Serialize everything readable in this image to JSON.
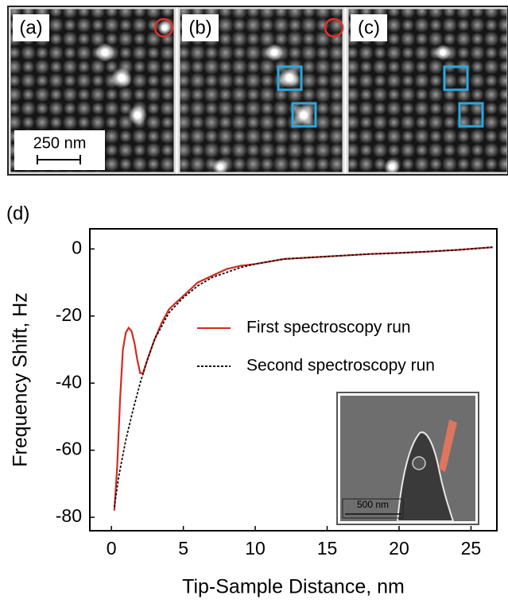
{
  "panels": [
    {
      "label": "(a)"
    },
    {
      "label": "(b)"
    },
    {
      "label": "(c)"
    }
  ],
  "scale_bar": "250 nm",
  "chart_data": {
    "type": "line",
    "panel_label": "(d)",
    "x_label": "Tip-Sample Distance, nm",
    "y_label": "Frequency Shift, Hz",
    "xlim": [
      -1.5,
      26.8
    ],
    "ylim": [
      -84,
      6
    ],
    "xticks": [
      0,
      5,
      10,
      15,
      20,
      25
    ],
    "yticks": [
      0,
      -20,
      -40,
      -60,
      -80
    ],
    "inset_scale_bar": "500 nm",
    "series": [
      {
        "name": "First spectroscopy run",
        "color": "#d42a20",
        "dash": false,
        "x": [
          0.2,
          0.4,
          0.6,
          0.8,
          1.0,
          1.2,
          1.4,
          1.6,
          1.8,
          2.0,
          2.2,
          2.5,
          3,
          3.5,
          4,
          5,
          6,
          7,
          8,
          9,
          10,
          12,
          14,
          16,
          18,
          20,
          22,
          24,
          26.5
        ],
        "values": [
          -78,
          -65,
          -45,
          -30,
          -25,
          -23.5,
          -24.5,
          -28,
          -33,
          -37,
          -37,
          -33,
          -27,
          -22,
          -18,
          -14,
          -10,
          -8,
          -6,
          -5,
          -4.5,
          -3,
          -2.5,
          -2,
          -1.5,
          -1.2,
          -0.8,
          -0.3,
          0.5
        ]
      },
      {
        "name": "Second spectroscopy run",
        "color": "#111111",
        "dash": true,
        "x": [
          0.2,
          0.5,
          1,
          1.5,
          2,
          2.5,
          3,
          3.5,
          4,
          5,
          6,
          7,
          8,
          9,
          10,
          12,
          14,
          16,
          18,
          20,
          22,
          24,
          26.5
        ],
        "values": [
          -77,
          -68,
          -57,
          -48,
          -40,
          -33,
          -27,
          -23,
          -19,
          -14.5,
          -11,
          -8.5,
          -7,
          -5.5,
          -4.5,
          -3,
          -2.5,
          -2,
          -1.5,
          -1.2,
          -0.8,
          -0.3,
          0.5
        ]
      }
    ]
  }
}
